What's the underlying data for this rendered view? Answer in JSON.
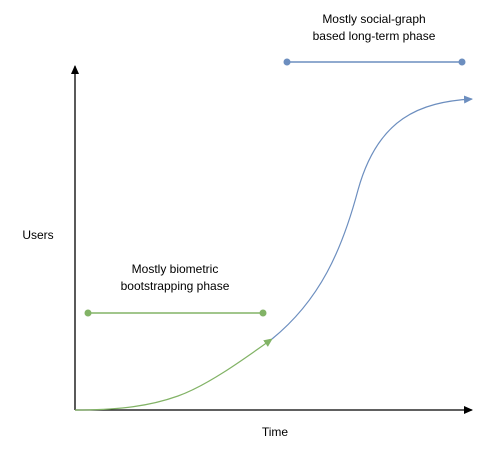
{
  "axes": {
    "y_label": "Users",
    "x_label": "Time"
  },
  "phases": [
    {
      "lines": [
        "Mostly biometric",
        "bootstrapping phase"
      ]
    },
    {
      "lines": [
        "Mostly social-graph",
        "based long-term phase"
      ]
    }
  ]
}
